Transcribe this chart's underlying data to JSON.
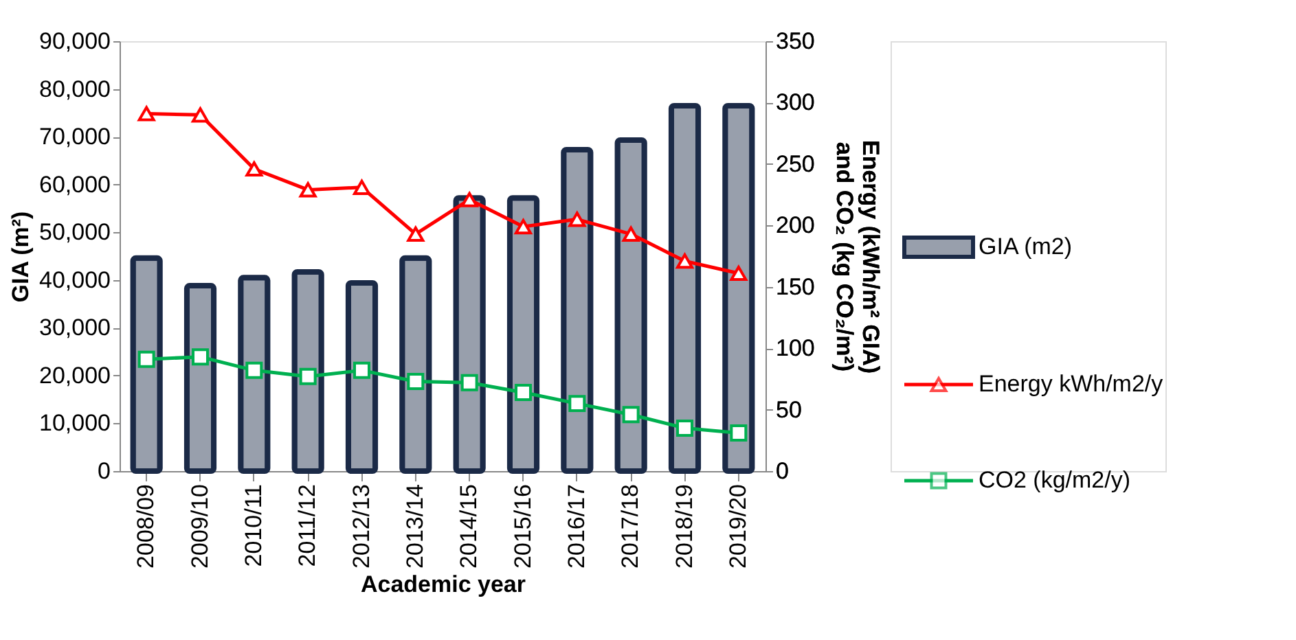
{
  "chart_data": {
    "type": "bar",
    "xlabel": "Academic year",
    "ylabel": "GIA (m²)",
    "y2label": "Energy (kWh/m² GIA) and CO₂ (kg CO₂/m²)",
    "categories": [
      "2008/09",
      "2009/10",
      "2010/11",
      "2011/12",
      "2012/13",
      "2013/14",
      "2014/15",
      "2015/16",
      "2016/17",
      "2017/18",
      "2018/19",
      "2019/20"
    ],
    "series": [
      {
        "name": "GIA (m2)",
        "color": "#1b2a47",
        "values": [
          44600,
          38800,
          40500,
          41700,
          39400,
          44600,
          57200,
          57200,
          67300,
          69300,
          76500,
          76500
        ]
      },
      {
        "name": "Energy kWh/m2/y",
        "type": "line",
        "axis": "y2",
        "marker": "triangle",
        "color": "#ff0000",
        "values": [
          291,
          290,
          246,
          229,
          231,
          193,
          221,
          199,
          205,
          193,
          171,
          161
        ]
      },
      {
        "name": "CO2 (kg/m2/y)",
        "type": "line",
        "axis": "y2",
        "marker": "square",
        "color": "#00b050",
        "values": [
          91,
          93,
          82,
          77,
          82,
          73,
          72,
          64,
          55,
          46,
          35,
          31
        ]
      }
    ],
    "ylim": [
      0,
      90000
    ],
    "yticks": [
      0,
      {
        "value": 10000,
        "label": "10,000"
      },
      {
        "value": 20000,
        "label": "20,000"
      },
      {
        "value": 30000,
        "label": "30,000"
      },
      {
        "value": 40000,
        "label": "40,000"
      },
      {
        "value": 50000,
        "label": "50,000"
      },
      {
        "value": 60000,
        "label": "60,000"
      },
      {
        "value": 70000,
        "label": "70,000"
      },
      {
        "value": 80000,
        "label": "80,000"
      },
      {
        "value": 90000,
        "label": "90,000"
      }
    ],
    "y2lim": [
      0,
      350
    ],
    "y2ticks": [
      0,
      50,
      100,
      150,
      200,
      250,
      300,
      350
    ],
    "grid": false,
    "legend": "right"
  }
}
